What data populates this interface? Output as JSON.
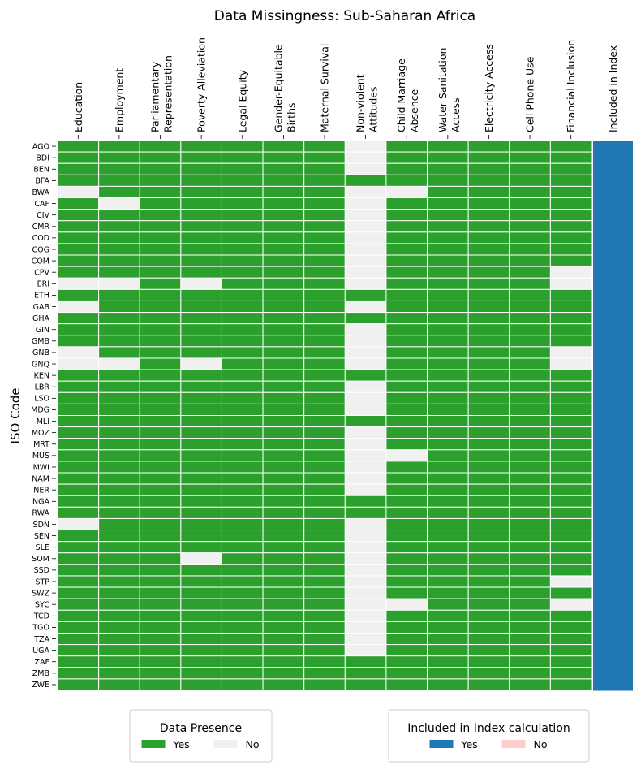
{
  "chart_data": {
    "type": "heatmap",
    "title": "Data Missingness: Sub-Saharan Africa",
    "xlabel": "",
    "ylabel": "ISO Code",
    "columns": [
      "Education",
      "Employment",
      "Parliamentary\nRepresentation",
      "Poverty Alleviation",
      "Legal Equity",
      "Gender-Equitable\nBirths",
      "Maternal Survival",
      "Non-violent\nAttitudes",
      "Child Marriage\nAbsence",
      "Water Sanitation\nAccess",
      "Electricity Access",
      "Cell Phone Use",
      "Financial Inclusion"
    ],
    "index_column": "Included in Index",
    "rows": [
      "AGO",
      "BDI",
      "BEN",
      "BFA",
      "BWA",
      "CAF",
      "CIV",
      "CMR",
      "COD",
      "COG",
      "COM",
      "CPV",
      "ERI",
      "ETH",
      "GAB",
      "GHA",
      "GIN",
      "GMB",
      "GNB",
      "GNQ",
      "KEN",
      "LBR",
      "LSO",
      "MDG",
      "MLI",
      "MOZ",
      "MRT",
      "MUS",
      "MWI",
      "NAM",
      "NER",
      "NGA",
      "RWA",
      "SDN",
      "SEN",
      "SLE",
      "SOM",
      "SSD",
      "STP",
      "SWZ",
      "SYC",
      "TCD",
      "TGO",
      "TZA",
      "UGA",
      "ZAF",
      "ZMB",
      "ZWE"
    ],
    "presence": [
      "1111111011111",
      "1111111011111",
      "1111111011111",
      "1111111111111",
      "0111111001111",
      "1011111011111",
      "1111111011111",
      "1111111011111",
      "1111111011111",
      "1111111011111",
      "1111111011111",
      "1111111011110",
      "0010111011110",
      "1111111111111",
      "0111111011111",
      "1111111111111",
      "1111111011111",
      "1111111011111",
      "0111111011110",
      "0010111011110",
      "1111111111111",
      "1111111011111",
      "1111111011111",
      "1111111011111",
      "1111111111111",
      "1111111011111",
      "1111111011111",
      "1111111001111",
      "1111111011111",
      "1111111011111",
      "1111111011111",
      "1111111111111",
      "1111111111111",
      "0111111011111",
      "1111111011111",
      "1111111011111",
      "1110111011111",
      "1111111011111",
      "1111111011110",
      "1111111011111",
      "1111111001110",
      "1111111011111",
      "1111111011111",
      "1111111011111",
      "1111111011111",
      "1111111111111",
      "1111111111111",
      "1111111111111"
    ],
    "included": [
      1,
      1,
      1,
      1,
      1,
      1,
      1,
      1,
      1,
      1,
      1,
      1,
      1,
      1,
      1,
      1,
      1,
      1,
      1,
      1,
      1,
      1,
      1,
      1,
      1,
      1,
      1,
      1,
      1,
      1,
      1,
      1,
      1,
      1,
      1,
      1,
      1,
      1,
      1,
      1,
      1,
      1,
      1,
      1,
      1,
      1,
      1,
      1
    ],
    "legends": [
      {
        "title": "Data Presence",
        "entries": [
          {
            "label": "Yes",
            "color": "#2ca02c"
          },
          {
            "label": "No",
            "color": "#f0f0f0"
          }
        ],
        "placement": "bottom-left"
      },
      {
        "title": "Included in Index calculation",
        "entries": [
          {
            "label": "Yes",
            "color": "#1f77b4"
          },
          {
            "label": "No",
            "color": "#ffcccc"
          }
        ],
        "placement": "bottom-right"
      }
    ],
    "colors": {
      "present": "#2ca02c",
      "missing": "#f0f0f0",
      "included": "#1f77b4",
      "excluded": "#ffcccc"
    }
  }
}
